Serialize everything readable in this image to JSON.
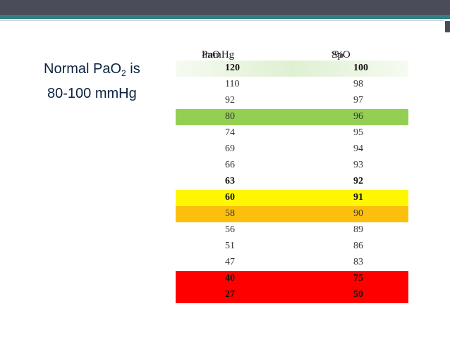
{
  "slide": {
    "title_line1_prefix": "Normal PaO",
    "title_line1_sub": "2",
    "title_line1_suffix": " is",
    "title_line2": "80-100 mmHg"
  },
  "table": {
    "headers": [
      {
        "prefix": "PaO",
        "sub": "2",
        "suffix": " mmHg"
      },
      {
        "prefix": "SpO",
        "sub": "2",
        "suffix": "%"
      }
    ],
    "rows": [
      {
        "pao2": "120",
        "spo2": "100",
        "bold": true,
        "color": "light-green"
      },
      {
        "pao2": "110",
        "spo2": "98",
        "bold": false,
        "color": "none"
      },
      {
        "pao2": "92",
        "spo2": "97",
        "bold": false,
        "color": "none"
      },
      {
        "pao2": "80",
        "spo2": "96",
        "bold": false,
        "color": "green"
      },
      {
        "pao2": "74",
        "spo2": "95",
        "bold": false,
        "color": "none"
      },
      {
        "pao2": "69",
        "spo2": "94",
        "bold": false,
        "color": "none"
      },
      {
        "pao2": "66",
        "spo2": "93",
        "bold": false,
        "color": "none"
      },
      {
        "pao2": "63",
        "spo2": "92",
        "bold": true,
        "color": "none"
      },
      {
        "pao2": "60",
        "spo2": "91",
        "bold": true,
        "color": "yellow"
      },
      {
        "pao2": "58",
        "spo2": "90",
        "bold": false,
        "color": "orange"
      },
      {
        "pao2": "56",
        "spo2": "89",
        "bold": false,
        "color": "none"
      },
      {
        "pao2": "51",
        "spo2": "86",
        "bold": false,
        "color": "none"
      },
      {
        "pao2": "47",
        "spo2": "83",
        "bold": false,
        "color": "none"
      },
      {
        "pao2": "40",
        "spo2": "75",
        "bold": true,
        "color": "red"
      },
      {
        "pao2": "27",
        "spo2": "50",
        "bold": true,
        "color": "red"
      }
    ]
  },
  "colors": {
    "light-green": "#dff0d2",
    "green": "#92cf52",
    "yellow": "#fef700",
    "orange": "#fdbf0e",
    "red": "#ff0000",
    "topbar": "#4a4c5a",
    "accent": "#2f7f84"
  }
}
